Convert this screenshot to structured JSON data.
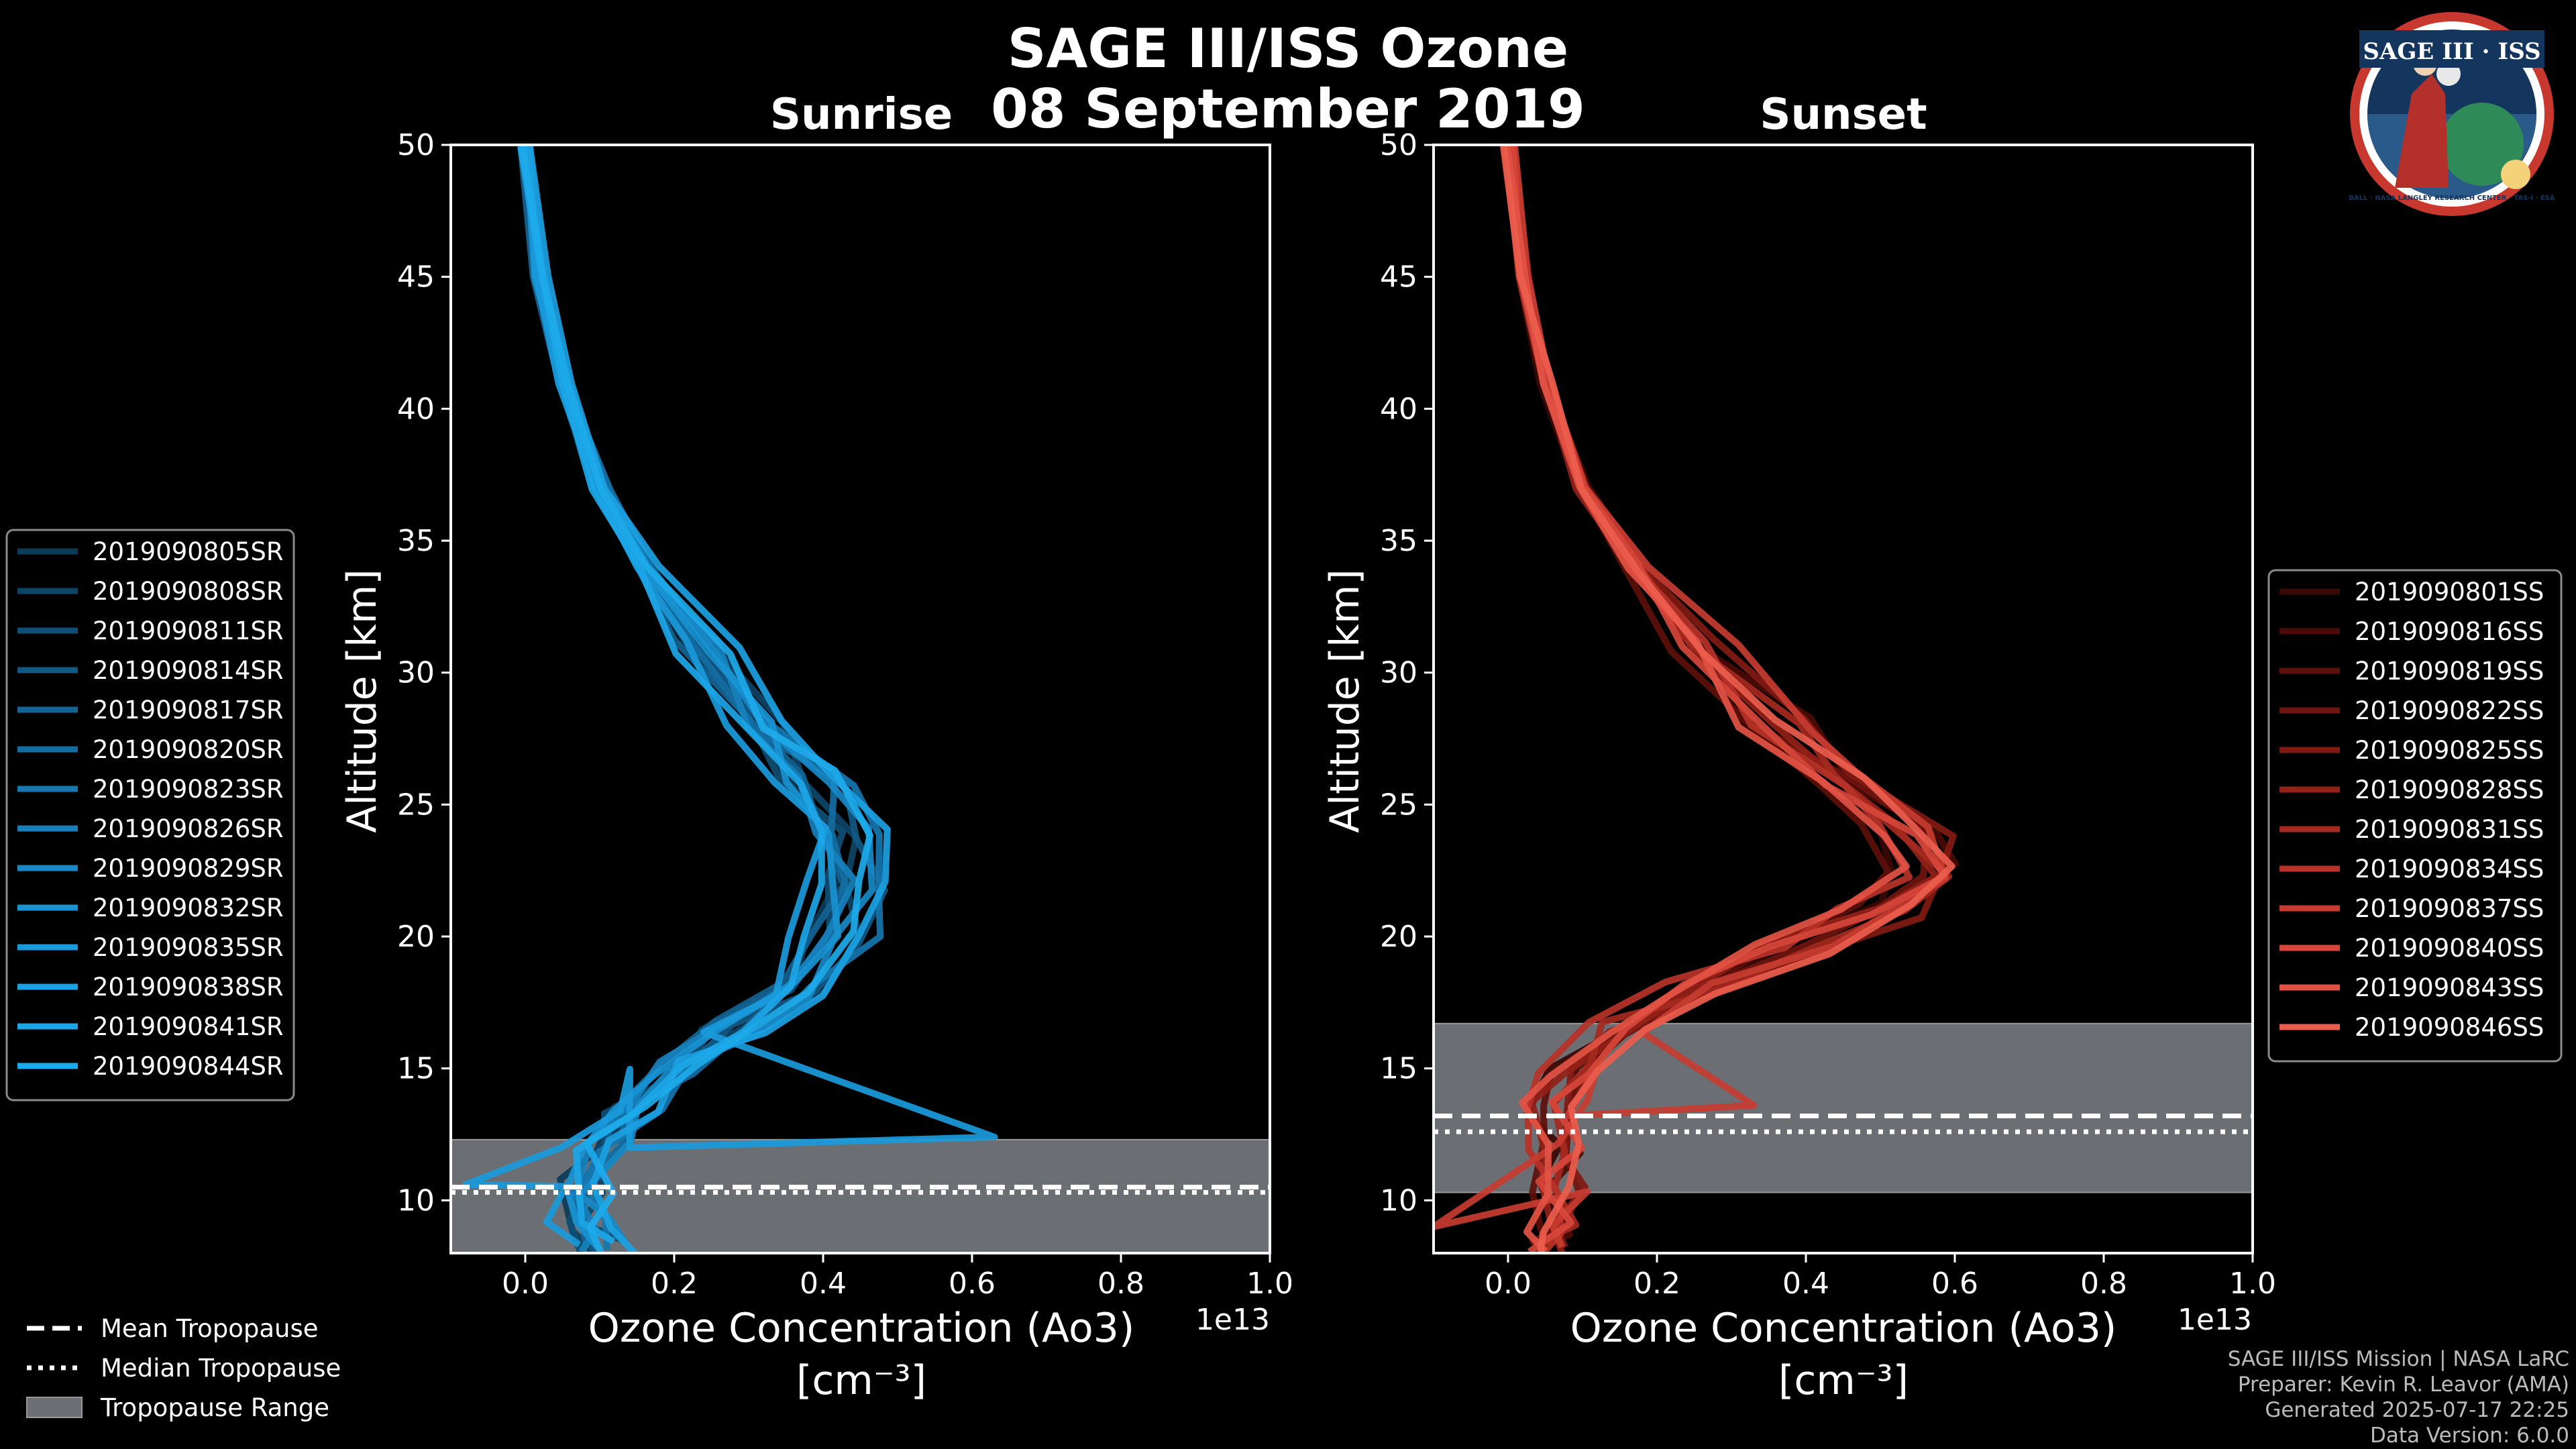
{
  "figure": {
    "title_line1": "SAGE III/ISS Ozone",
    "title_line2": "08 September 2019",
    "logo": {
      "text_top": "SAGE III · ISS",
      "ring_text": "BALL · NASA LANGLEY RESEARCH CENTER · TAS-I · ESA"
    },
    "credits": [
      "SAGE III/ISS Mission | NASA LaRC",
      "Preparer: Kevin R. Leavor (AMA)",
      "Generated 2025-07-17 22:25",
      "Data Version: 6.0.0"
    ],
    "tropopause_legend": [
      {
        "label": "Mean Tropopause",
        "style": "dashed"
      },
      {
        "label": "Median Tropopause",
        "style": "dotted"
      },
      {
        "label": "Tropopause Range",
        "style": "patch"
      }
    ]
  },
  "chart_data": [
    {
      "type": "line",
      "title": "Sunrise",
      "xlabel": "Ozone Concentration (Ao3)",
      "xunits": "[cm⁻³]",
      "x_multiplier": "1e13",
      "ylabel": "Altitude [km]",
      "xlim": [
        -0.1,
        1.0
      ],
      "ylim": [
        8,
        50
      ],
      "xticks": [
        "0.0",
        "0.2",
        "0.4",
        "0.6",
        "0.8",
        "1.0"
      ],
      "yticks": [
        "10",
        "15",
        "20",
        "25",
        "30",
        "35",
        "40",
        "45",
        "50"
      ],
      "tropopause": {
        "mean": 10.5,
        "median": 10.3,
        "range": [
          8.0,
          12.3
        ]
      },
      "base_profile": [
        [
          0.0,
          50
        ],
        [
          0.02,
          45
        ],
        [
          0.05,
          41
        ],
        [
          0.1,
          37
        ],
        [
          0.16,
          34
        ],
        [
          0.24,
          31
        ],
        [
          0.32,
          28
        ],
        [
          0.38,
          26
        ],
        [
          0.43,
          24
        ],
        [
          0.44,
          22
        ],
        [
          0.42,
          20
        ],
        [
          0.36,
          18
        ],
        [
          0.28,
          16.5
        ],
        [
          0.2,
          15
        ],
        [
          0.14,
          13.5
        ],
        [
          0.1,
          12
        ],
        [
          0.08,
          10.5
        ],
        [
          0.08,
          9
        ],
        [
          0.1,
          8.2
        ]
      ],
      "series": [
        {
          "name": "2019090805SR",
          "color": "#0b3b57",
          "shift": -0.03
        },
        {
          "name": "2019090808SR",
          "color": "#0d4566",
          "shift": 0.02
        },
        {
          "name": "2019090811SR",
          "color": "#0f4f75",
          "shift": -0.01
        },
        {
          "name": "2019090814SR",
          "color": "#115984",
          "shift": 0.04
        },
        {
          "name": "2019090817SR",
          "color": "#136393",
          "shift": -0.04
        },
        {
          "name": "2019090820SR",
          "color": "#146da1",
          "shift": 0.01
        },
        {
          "name": "2019090823SR",
          "color": "#1676ae",
          "shift": 0.05
        },
        {
          "name": "2019090826SR",
          "color": "#1780bb",
          "shift": -0.02
        },
        {
          "name": "2019090829SR",
          "color": "#1889c6",
          "shift": 0.03
        },
        {
          "name": "2019090832SR",
          "color": "#1992d1",
          "shift": 0.0
        },
        {
          "name": "2019090835SR",
          "color": "#1a9adb",
          "shift": -0.05
        },
        {
          "name": "2019090838SR",
          "color": "#1ba1e2",
          "shift": 0.06
        },
        {
          "name": "2019090841SR",
          "color": "#1ca6e7",
          "shift": -0.02
        },
        {
          "name": "2019090844SR",
          "color": "#1daaea",
          "shift": 0.02
        }
      ],
      "extremes": {
        "max_x": 0.63,
        "max_x_alt": 12.4,
        "min_x": -0.08,
        "min_x_alt": 10.6
      }
    },
    {
      "type": "line",
      "title": "Sunset",
      "xlabel": "Ozone Concentration (Ao3)",
      "xunits": "[cm⁻³]",
      "x_multiplier": "1e13",
      "ylabel": "Altitude [km]",
      "xlim": [
        -0.1,
        1.0
      ],
      "ylim": [
        8,
        50
      ],
      "xticks": [
        "0.0",
        "0.2",
        "0.4",
        "0.6",
        "0.8",
        "1.0"
      ],
      "yticks": [
        "10",
        "15",
        "20",
        "25",
        "30",
        "35",
        "40",
        "45",
        "50"
      ],
      "tropopause": {
        "mean": 13.2,
        "median": 12.6,
        "range": [
          10.3,
          16.7
        ]
      },
      "base_profile": [
        [
          0.0,
          50
        ],
        [
          0.02,
          45
        ],
        [
          0.05,
          41
        ],
        [
          0.1,
          37
        ],
        [
          0.17,
          34
        ],
        [
          0.26,
          31
        ],
        [
          0.36,
          28
        ],
        [
          0.45,
          26
        ],
        [
          0.53,
          24
        ],
        [
          0.56,
          22.5
        ],
        [
          0.5,
          21
        ],
        [
          0.38,
          19.5
        ],
        [
          0.25,
          18
        ],
        [
          0.14,
          16.5
        ],
        [
          0.08,
          15
        ],
        [
          0.06,
          13.5
        ],
        [
          0.07,
          12
        ],
        [
          0.07,
          10.5
        ],
        [
          0.06,
          9
        ],
        [
          0.05,
          8.2
        ]
      ],
      "series": [
        {
          "name": "2019090801SS",
          "color": "#3a0805",
          "shift": -0.02
        },
        {
          "name": "2019090816SS",
          "color": "#4b0b07",
          "shift": 0.03
        },
        {
          "name": "2019090819SS",
          "color": "#5d0f0a",
          "shift": -0.04
        },
        {
          "name": "2019090822SS",
          "color": "#6f140e",
          "shift": 0.01
        },
        {
          "name": "2019090825SS",
          "color": "#811a12",
          "shift": 0.04
        },
        {
          "name": "2019090828SS",
          "color": "#932118",
          "shift": -0.01
        },
        {
          "name": "2019090831SS",
          "color": "#a5291f",
          "shift": 0.02
        },
        {
          "name": "2019090834SS",
          "color": "#b73228",
          "shift": -0.03
        },
        {
          "name": "2019090837SS",
          "color": "#c73c31",
          "shift": 0.05
        },
        {
          "name": "2019090840SS",
          "color": "#d6463a",
          "shift": 0.0
        },
        {
          "name": "2019090843SS",
          "color": "#e25244",
          "shift": -0.05
        },
        {
          "name": "2019090846SS",
          "color": "#ec5d4d",
          "shift": 0.03
        }
      ],
      "extremes": {
        "max_x": 0.33,
        "max_x_alt": 13.6,
        "min_x": -0.1,
        "min_x_alt": 9.0
      }
    }
  ]
}
